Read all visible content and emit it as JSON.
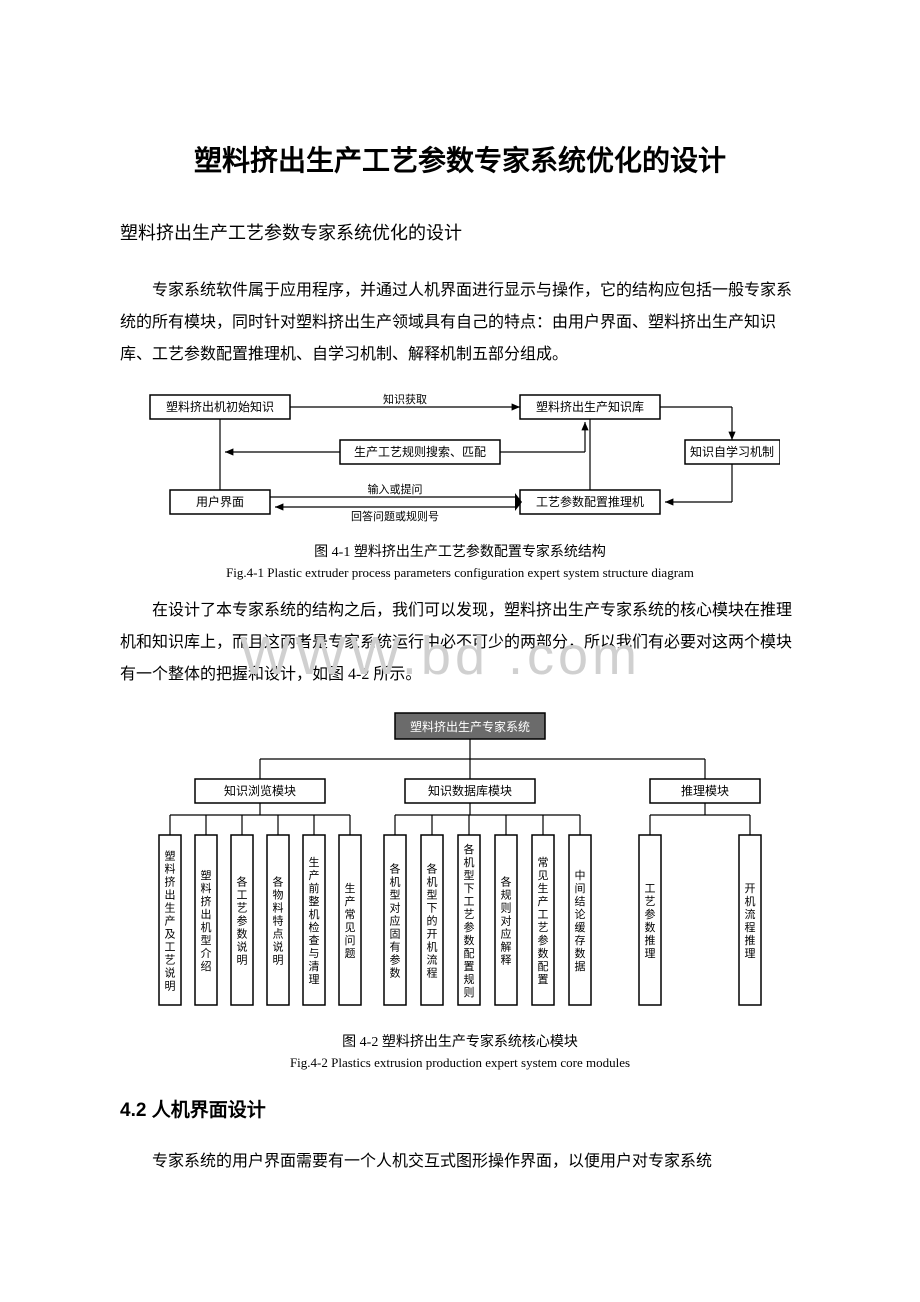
{
  "title": "塑料挤出生产工艺参数专家系统优化的设计",
  "subtitle": "塑料挤出生产工艺参数专家系统优化的设计",
  "para1": "专家系统软件属于应用程序，并通过人机界面进行显示与操作，它的结构应包括一般专家系统的所有模块，同时针对塑料挤出生产领域具有自己的特点：由用户界面、塑料挤出生产知识库、工艺参数配置推理机、自学习机制、解释机制五部分组成。",
  "fig1": {
    "caption_cn": "图 4-1 塑料挤出生产工艺参数配置专家系统结构",
    "caption_en": "Fig.4-1 Plastic extruder process parameters configuration expert system structure diagram",
    "nodes": {
      "n1": "塑料挤出机初始知识",
      "n2": "生产工艺规则搜索、匹配",
      "n3": "用户界面",
      "n4": "塑料挤出生产知识库",
      "n5": "工艺参数配置推理机",
      "n6": "知识自学习机制"
    },
    "edge_labels": {
      "e1": "知识获取",
      "e2": "输入或提问",
      "e3": "回答问题或规则号"
    },
    "colors": {
      "box_stroke": "#000000",
      "box_fill": "#ffffff",
      "line": "#000000",
      "text": "#000000"
    },
    "fontsize": 12,
    "label_fontsize": 11
  },
  "para2": "在设计了本专家系统的结构之后，我们可以发现，塑料挤出生产专家系统的核心模块在推理机和知识库上，而且这两者是专家系统运行中必不可少的两部分，所以我们有必要对这两个模块有一个整体的把握和设计，如图 4-2 所示。",
  "fig2": {
    "caption_cn": "图 4-2 塑料挤出生产专家系统核心模块",
    "caption_en": "Fig.4-2 Plastics extrusion production expert system core modules",
    "root": "塑料挤出生产专家系统",
    "mid": [
      "知识浏览模块",
      "知识数据库模块",
      "推理模块"
    ],
    "leaves_group1": [
      "塑料挤出生产及工艺说明",
      "塑料挤出机型介绍",
      "各工艺参数说明",
      "各物料特点说明",
      "生产前整机检查与清理",
      "生产常见问题"
    ],
    "leaves_group2": [
      "各机型对应固有参数",
      "各机型下的开机流程",
      "各机型下工艺参数配置规则",
      "各规则对应解释",
      "常见生产工艺参数配置",
      "中间结论缓存数据"
    ],
    "leaves_group3": [
      "工艺参数推理",
      "开机流程推理"
    ],
    "colors": {
      "box_stroke": "#000000",
      "box_fill": "#ffffff",
      "line": "#000000",
      "text": "#000000",
      "root_fill": "#6b6b6b",
      "root_text": "#ffffff"
    },
    "fontsize": 12,
    "leaf_fontsize": 11
  },
  "section_head": "4.2 人机界面设计",
  "para3": "专家系统的用户界面需要有一个人机交互式图形操作界面，以便用户对专家系统",
  "watermark": "WWW.bd   .com"
}
